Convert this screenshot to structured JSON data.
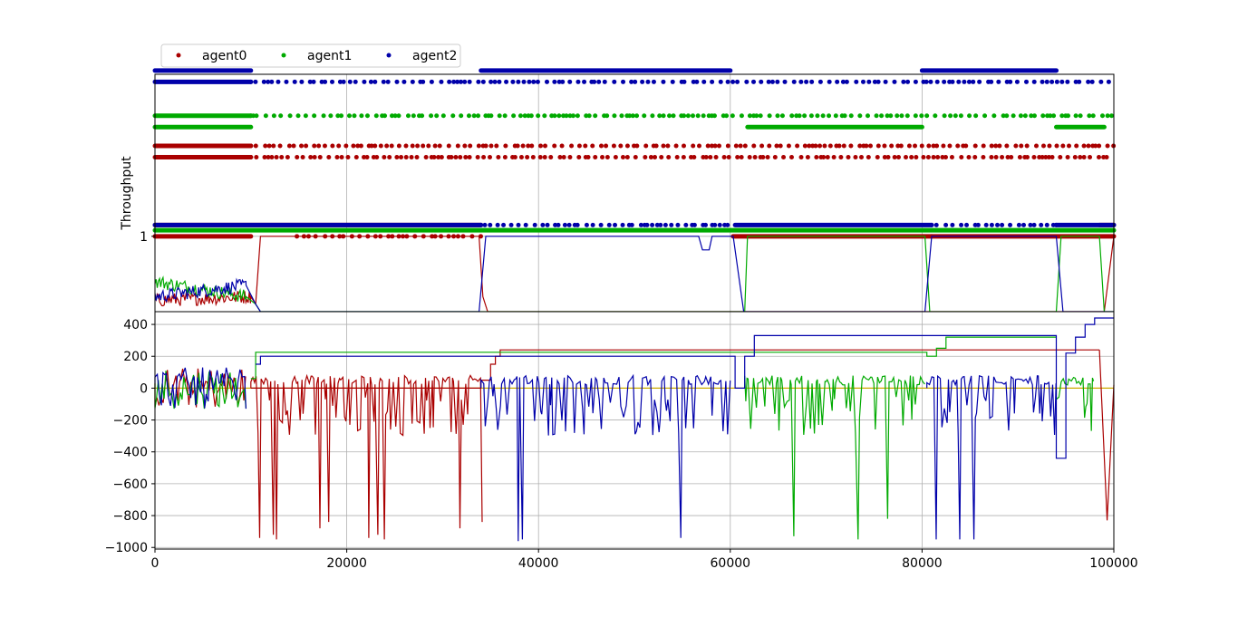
{
  "chart_data": {
    "type": "line",
    "legend": {
      "placement": "top-left",
      "entries": [
        {
          "label": "agent0",
          "color": "#aa0000"
        },
        {
          "label": "agent1",
          "color": "#00aa00"
        },
        {
          "label": "agent2",
          "color": "#0000aa"
        }
      ]
    },
    "x_ticks": [
      0,
      20000,
      40000,
      60000,
      80000,
      100000
    ],
    "xlim": [
      0,
      100000
    ],
    "grid": true,
    "panels": [
      {
        "id": "upper",
        "ylabel": "Throughput",
        "y_ticks": [
          1
        ],
        "ylim": [
          0,
          3.15
        ],
        "scatter_series": [
          {
            "name": "agent0",
            "color": "#aa0000",
            "points": [
              {
                "y": 1.0,
                "segments": [
                  [
                    0,
                    10000,
                    "dense"
                  ],
                  [
                    14800,
                    34000,
                    "sparse"
                  ],
                  [
                    60300,
                    81000,
                    "dense"
                  ],
                  [
                    81000,
                    100000,
                    "dense"
                  ]
                ]
              },
              {
                "y": 1.15,
                "segments": [
                  [
                    0,
                    34000,
                    "dense"
                  ],
                  [
                    98500,
                    100000,
                    "dense"
                  ]
                ]
              },
              {
                "y": 2.05,
                "segments": [
                  [
                    0,
                    10000,
                    "dense"
                  ],
                  [
                    10000,
                    100000,
                    "sparse"
                  ]
                ]
              },
              {
                "y": 2.2,
                "segments": [
                  [
                    0,
                    10000,
                    "dense"
                  ],
                  [
                    10000,
                    100000,
                    "sparse"
                  ]
                ]
              }
            ]
          },
          {
            "name": "agent1",
            "color": "#00aa00",
            "points": [
              {
                "y": 1.08,
                "segments": [
                  [
                    0,
                    100000,
                    "dense"
                  ]
                ]
              },
              {
                "y": 2.45,
                "segments": [
                  [
                    0,
                    10000,
                    "dense"
                  ],
                  [
                    61800,
                    80000,
                    "dense"
                  ],
                  [
                    94000,
                    99000,
                    "dense"
                  ]
                ]
              },
              {
                "y": 2.6,
                "segments": [
                  [
                    0,
                    10000,
                    "dense"
                  ],
                  [
                    10000,
                    100000,
                    "sparse"
                  ]
                ]
              }
            ]
          },
          {
            "name": "agent2",
            "color": "#0000aa",
            "points": [
              {
                "y": 1.15,
                "segments": [
                  [
                    0,
                    34000,
                    "dense"
                  ],
                  [
                    34000,
                    60000,
                    "sparse"
                  ],
                  [
                    60500,
                    81000,
                    "dense"
                  ],
                  [
                    81000,
                    94000,
                    "sparse"
                  ],
                  [
                    94000,
                    100000,
                    "dense"
                  ]
                ]
              },
              {
                "y": 3.05,
                "segments": [
                  [
                    0,
                    10000,
                    "dense"
                  ],
                  [
                    10000,
                    100000,
                    "sparse"
                  ]
                ]
              },
              {
                "y": 3.2,
                "segments": [
                  [
                    0,
                    10000,
                    "dense"
                  ],
                  [
                    34000,
                    60000,
                    "dense"
                  ],
                  [
                    80000,
                    94000,
                    "dense"
                  ]
                ]
              }
            ]
          }
        ],
        "line_series": [
          {
            "name": "agent0",
            "color": "#aa0000",
            "x": [
              0,
              10000,
              10500,
              11000,
              33800,
              34200,
              34700,
              98500,
              99000,
              100000
            ],
            "y": [
              0.15,
              0.2,
              0.1,
              1.0,
              1.0,
              0.2,
              0.0,
              0.0,
              0.0,
              1.0
            ]
          },
          {
            "name": "agent1",
            "color": "#00aa00",
            "x": [
              0,
              9500,
              10500,
              11000,
              61500,
              61800,
              80300,
              80800,
              94000,
              94500,
              98500,
              99000,
              100000
            ],
            "y": [
              0.4,
              0.2,
              0.1,
              0.0,
              0.0,
              1.0,
              1.0,
              0.0,
              0.0,
              1.0,
              1.0,
              0.0,
              0.0
            ]
          },
          {
            "name": "agent2",
            "color": "#0000aa",
            "x": [
              0,
              9500,
              10500,
              11000,
              33800,
              34500,
              56700,
              57100,
              57800,
              58100,
              60300,
              61400,
              80300,
              81000,
              94000,
              94700,
              100000
            ],
            "y": [
              0.2,
              0.35,
              0.1,
              0.0,
              0.0,
              1.0,
              1.0,
              0.82,
              0.82,
              1.0,
              1.0,
              0.0,
              0.0,
              1.0,
              1.0,
              0.0,
              0.0
            ]
          }
        ]
      },
      {
        "id": "lower",
        "ylabel": "",
        "y_ticks": [
          400,
          200,
          0,
          -200,
          -400,
          -600,
          -800,
          -1000
        ],
        "ylim": [
          -1010,
          480
        ],
        "baseline": {
          "color": "#ccaa00",
          "y": 0
        },
        "series": [
          {
            "name": "agent0",
            "color": "#aa0000",
            "step_x": [
              10000,
              34000,
              35000,
              35500,
              36000,
              98500
            ],
            "step_y": [
              0,
              50,
              150,
              200,
              240,
              240
            ],
            "negative_span": [
              10000,
              34000
            ],
            "spike_min": [
              -940,
              -920,
              -950,
              -880,
              -840
            ],
            "late_span": [
              98500,
              100000
            ],
            "late_min": -830
          },
          {
            "name": "agent1",
            "color": "#00aa00",
            "step_x": [
              10000,
              10500,
              61500,
              80500,
              81500,
              82500,
              94000
            ],
            "step_y": [
              60,
              225,
              225,
              200,
              250,
              320,
              320
            ],
            "negative_span": [
              61500,
              80500
            ],
            "spike_min": [
              -930,
              -950,
              -820
            ],
            "span2": [
              94000,
              98000
            ],
            "span2_min": -950
          },
          {
            "name": "agent2",
            "color": "#0000aa",
            "step_x": [
              10500,
              11000,
              34000,
              60500,
              61500,
              62500,
              80500,
              94000,
              95000,
              96000,
              97000,
              98000,
              100000
            ],
            "step_y": [
              150,
              200,
              200,
              0,
              200,
              330,
              330,
              -440,
              220,
              320,
              400,
              440,
              440
            ],
            "negative_span": [
              34000,
              60000
            ],
            "spike_min": [
              -960,
              -950,
              -940,
              -890,
              -960
            ],
            "span2": [
              80500,
              94000
            ],
            "span2_min": -950
          }
        ]
      }
    ]
  }
}
